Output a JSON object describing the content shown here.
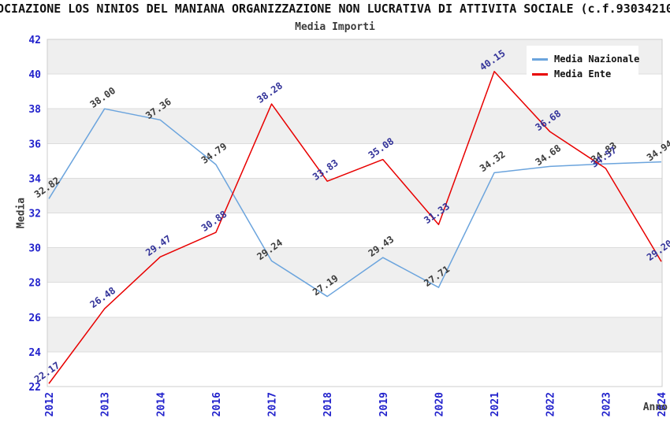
{
  "header": {
    "title_visible": "OCIAZIONE LOS NINIOS DEL MANIANA ORGANIZZAZIONE NON LUCRATIVA DI ATTIVITA SOCIALE (c.f.93034210",
    "subtitle": "Media Importi"
  },
  "chart_data": {
    "type": "line",
    "title": "Media Importi",
    "xlabel": "Anno",
    "ylabel": "Media",
    "ylim": [
      22,
      42
    ],
    "yticks": [
      22,
      24,
      26,
      28,
      30,
      32,
      34,
      36,
      38,
      40,
      42
    ],
    "categories": [
      "2012",
      "2013",
      "2014",
      "2016",
      "2017",
      "2018",
      "2019",
      "2020",
      "2021",
      "2022",
      "2023",
      "2024"
    ],
    "series": [
      {
        "name": "Media Nazionale",
        "color": "#6BA4DD",
        "label_color": "#3c3c3c",
        "values": [
          32.82,
          38.0,
          37.36,
          34.79,
          29.24,
          27.19,
          29.43,
          27.71,
          34.32,
          34.68,
          34.83,
          34.94
        ]
      },
      {
        "name": "Media Ente",
        "color": "#E80000",
        "label_color": "#333399",
        "values": [
          22.17,
          26.48,
          29.47,
          30.88,
          38.28,
          33.83,
          35.08,
          31.33,
          40.15,
          36.68,
          34.57,
          29.2
        ]
      }
    ],
    "legend_position": "top-right",
    "grid": "horizontal-bands",
    "band_color": "#efefef",
    "gridline_color": "#dcdcdc",
    "plot_border_color": "#cccccc",
    "tick_label_color": "#2222CC"
  }
}
